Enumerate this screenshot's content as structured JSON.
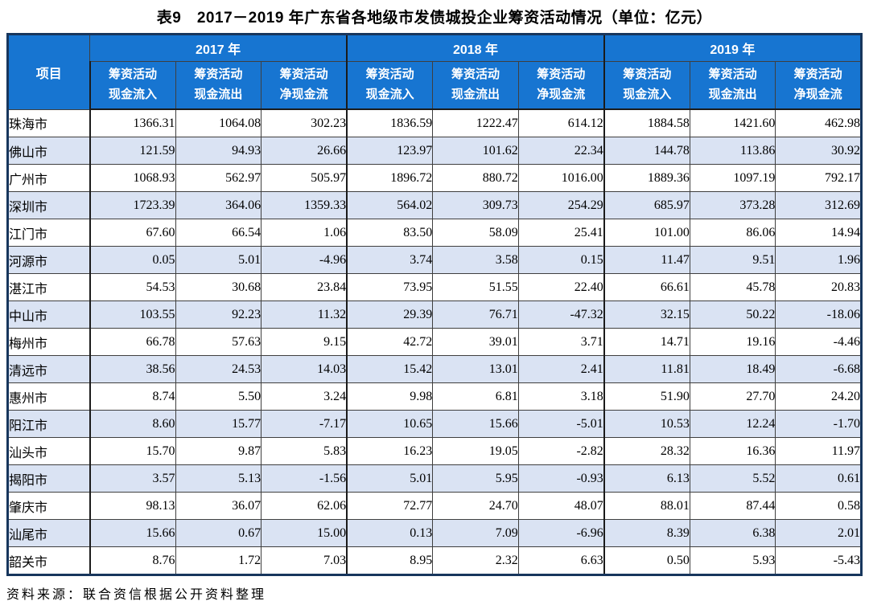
{
  "title": "表9　2017－2019 年广东省各地级市发债城投企业筹资活动情况（单位：亿元）",
  "source_note": "资料来源：联合资信根据公开资料整理",
  "colors": {
    "header_bg": "#1775D1",
    "header_text": "#FFFFFF",
    "stripe_bg": "#DAE3F3",
    "outer_border": "#17365D",
    "grid_line": "#3F3F3F"
  },
  "table": {
    "corner_label": "项目",
    "year_groups": [
      "2017 年",
      "2018 年",
      "2019 年"
    ],
    "sub_headers": [
      {
        "line1": "筹资活动",
        "line2": "现金流入"
      },
      {
        "line1": "筹资活动",
        "line2": "现金流出"
      },
      {
        "line1": "筹资活动",
        "line2": "净现金流"
      }
    ],
    "rows": [
      {
        "city": "珠海市",
        "values": [
          "1366.31",
          "1064.08",
          "302.23",
          "1836.59",
          "1222.47",
          "614.12",
          "1884.58",
          "1421.60",
          "462.98"
        ]
      },
      {
        "city": "佛山市",
        "values": [
          "121.59",
          "94.93",
          "26.66",
          "123.97",
          "101.62",
          "22.34",
          "144.78",
          "113.86",
          "30.92"
        ]
      },
      {
        "city": "广州市",
        "values": [
          "1068.93",
          "562.97",
          "505.97",
          "1896.72",
          "880.72",
          "1016.00",
          "1889.36",
          "1097.19",
          "792.17"
        ]
      },
      {
        "city": "深圳市",
        "values": [
          "1723.39",
          "364.06",
          "1359.33",
          "564.02",
          "309.73",
          "254.29",
          "685.97",
          "373.28",
          "312.69"
        ]
      },
      {
        "city": "江门市",
        "values": [
          "67.60",
          "66.54",
          "1.06",
          "83.50",
          "58.09",
          "25.41",
          "101.00",
          "86.06",
          "14.94"
        ]
      },
      {
        "city": "河源市",
        "values": [
          "0.05",
          "5.01",
          "-4.96",
          "3.74",
          "3.58",
          "0.15",
          "11.47",
          "9.51",
          "1.96"
        ]
      },
      {
        "city": "湛江市",
        "values": [
          "54.53",
          "30.68",
          "23.84",
          "73.95",
          "51.55",
          "22.40",
          "66.61",
          "45.78",
          "20.83"
        ]
      },
      {
        "city": "中山市",
        "values": [
          "103.55",
          "92.23",
          "11.32",
          "29.39",
          "76.71",
          "-47.32",
          "32.15",
          "50.22",
          "-18.06"
        ]
      },
      {
        "city": "梅州市",
        "values": [
          "66.78",
          "57.63",
          "9.15",
          "42.72",
          "39.01",
          "3.71",
          "14.71",
          "19.16",
          "-4.46"
        ]
      },
      {
        "city": "清远市",
        "values": [
          "38.56",
          "24.53",
          "14.03",
          "15.42",
          "13.01",
          "2.41",
          "11.81",
          "18.49",
          "-6.68"
        ]
      },
      {
        "city": "惠州市",
        "values": [
          "8.74",
          "5.50",
          "3.24",
          "9.98",
          "6.81",
          "3.18",
          "51.90",
          "27.70",
          "24.20"
        ]
      },
      {
        "city": "阳江市",
        "values": [
          "8.60",
          "15.77",
          "-7.17",
          "10.65",
          "15.66",
          "-5.01",
          "10.53",
          "12.24",
          "-1.70"
        ]
      },
      {
        "city": "汕头市",
        "values": [
          "15.70",
          "9.87",
          "5.83",
          "16.23",
          "19.05",
          "-2.82",
          "28.32",
          "16.36",
          "11.97"
        ]
      },
      {
        "city": "揭阳市",
        "values": [
          "3.57",
          "5.13",
          "-1.56",
          "5.01",
          "5.95",
          "-0.93",
          "6.13",
          "5.52",
          "0.61"
        ]
      },
      {
        "city": "肇庆市",
        "values": [
          "98.13",
          "36.07",
          "62.06",
          "72.77",
          "24.70",
          "48.07",
          "88.01",
          "87.44",
          "0.58"
        ]
      },
      {
        "city": "汕尾市",
        "values": [
          "15.66",
          "0.67",
          "15.00",
          "0.13",
          "7.09",
          "-6.96",
          "8.39",
          "6.38",
          "2.01"
        ]
      },
      {
        "city": "韶关市",
        "values": [
          "8.76",
          "1.72",
          "7.03",
          "8.95",
          "2.32",
          "6.63",
          "0.50",
          "5.93",
          "-5.43"
        ]
      }
    ]
  },
  "chart_data": {
    "type": "table",
    "title": "表9 2017－2019年广东省各地级市发债城投企业筹资活动情况（单位：亿元）",
    "column_groups": [
      "2017年",
      "2018年",
      "2019年"
    ],
    "columns_per_group": [
      "筹资活动现金流入",
      "筹资活动现金流出",
      "筹资活动净现金流"
    ],
    "row_label_header": "项目",
    "source": "资料来源：联合资信根据公开资料整理"
  }
}
